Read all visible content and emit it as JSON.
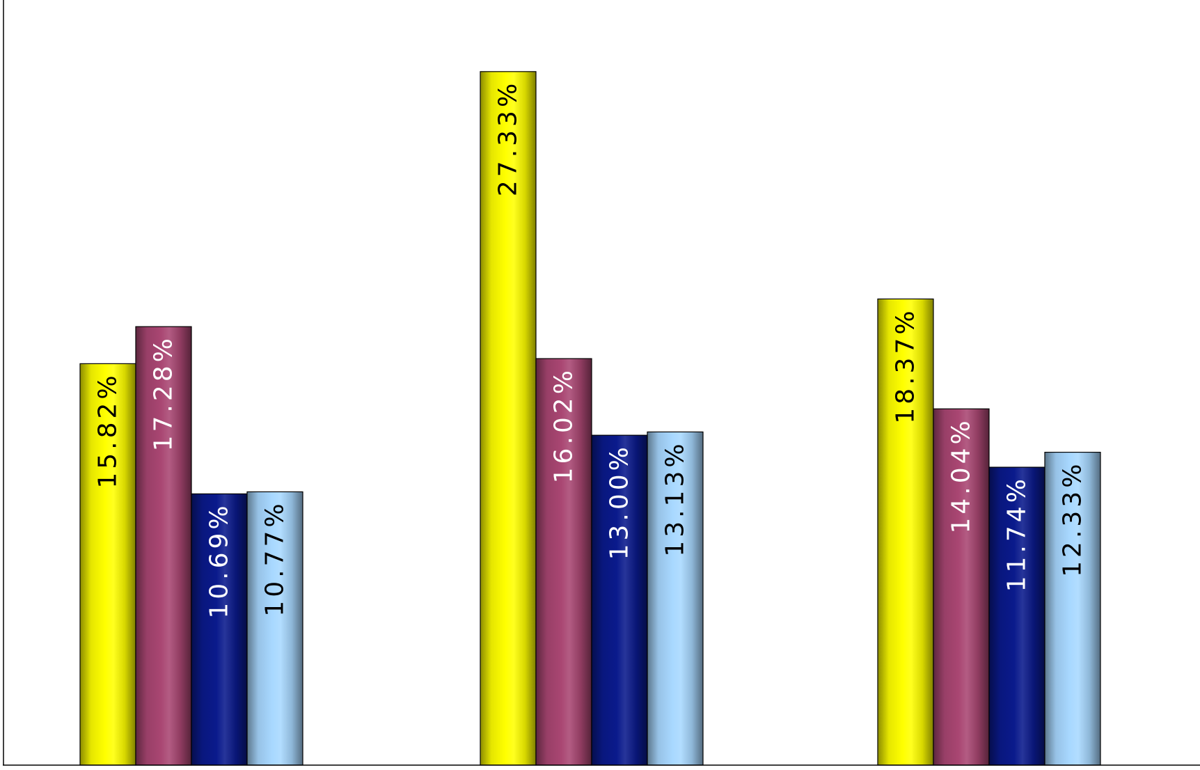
{
  "chart_data": {
    "type": "bar",
    "title": "",
    "xlabel": "",
    "ylabel": "",
    "categories": [
      "",
      "",
      ""
    ],
    "ylim": [
      0,
      30
    ],
    "grid": false,
    "legend": "none",
    "series": [
      {
        "color": "#ffff00",
        "values": [
          15.82,
          27.33,
          18.37
        ],
        "labels": [
          "15.82%",
          "27.33%",
          "18.37%"
        ],
        "label_color": "#000000"
      },
      {
        "color": "#a94672",
        "values": [
          17.28,
          16.02,
          14.04
        ],
        "labels": [
          "17.28%",
          "16.02%",
          "14.04%"
        ],
        "label_color": "#ffffff"
      },
      {
        "color": "#0a1a8c",
        "values": [
          10.69,
          13.0,
          11.74
        ],
        "labels": [
          "10.69%",
          "13.00%",
          "11.74%"
        ],
        "label_color": "#ffffff"
      },
      {
        "color": "#a8d8ff",
        "values": [
          10.77,
          13.13,
          12.33
        ],
        "labels": [
          "10.77%",
          "13.13%",
          "12.33%"
        ],
        "label_color": "#000000"
      }
    ]
  }
}
